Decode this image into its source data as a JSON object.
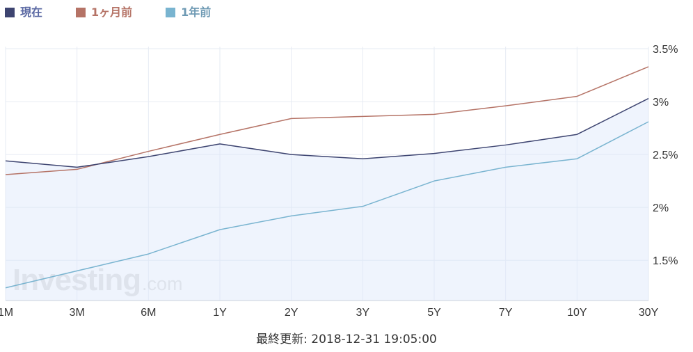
{
  "legend": [
    {
      "label": "現在",
      "color": "#3d4470",
      "text_color": "#5a68a3"
    },
    {
      "label": "1ヶ月前",
      "color": "#b57366",
      "text_color": "#b57366"
    },
    {
      "label": "1年前",
      "color": "#79b4d0",
      "text_color": "#6d99b3"
    }
  ],
  "footer": {
    "label": "最終更新: 2018-12-31 19:05:00"
  },
  "watermark": {
    "brand": "Investing",
    "suffix": ".com"
  },
  "chart_data": {
    "type": "line",
    "categories": [
      "1M",
      "3M",
      "6M",
      "1Y",
      "2Y",
      "3Y",
      "5Y",
      "7Y",
      "10Y",
      "30Y"
    ],
    "series": [
      {
        "name": "現在",
        "color": "#3d4470",
        "area": true,
        "values": [
          2.44,
          2.38,
          2.48,
          2.6,
          2.5,
          2.46,
          2.51,
          2.59,
          2.69,
          3.03
        ]
      },
      {
        "name": "1ヶ月前",
        "color": "#b57366",
        "area": false,
        "values": [
          2.31,
          2.36,
          2.53,
          2.69,
          2.84,
          2.86,
          2.88,
          2.96,
          3.05,
          3.33
        ]
      },
      {
        "name": "1年前",
        "color": "#79b4d0",
        "area": false,
        "values": [
          1.24,
          1.4,
          1.56,
          1.79,
          1.92,
          2.01,
          2.25,
          2.38,
          2.46,
          2.81
        ]
      }
    ],
    "yticks": [
      "1.5%",
      "2%",
      "2.5%",
      "3%",
      "3.5%"
    ],
    "ytick_values": [
      1.5,
      2.0,
      2.5,
      3.0,
      3.5
    ],
    "ylim": [
      1.12,
      3.52
    ],
    "y_axis_position": "right",
    "grid": true,
    "legend_position": "top-left",
    "title": "",
    "xlabel": "",
    "ylabel": ""
  }
}
